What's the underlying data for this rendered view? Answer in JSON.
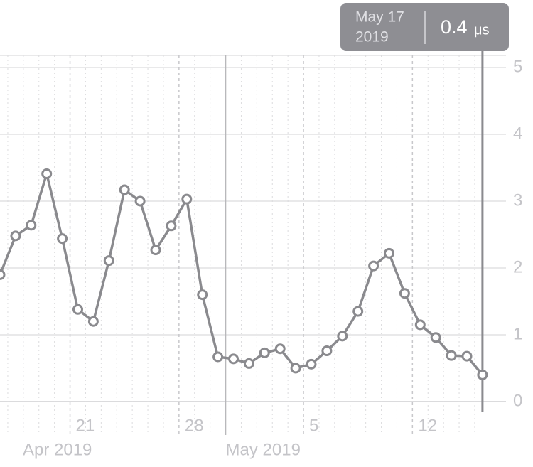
{
  "chart_data": {
    "type": "line",
    "categories": [
      null,
      null,
      null,
      null,
      null,
      "21",
      null,
      null,
      null,
      null,
      null,
      null,
      "28",
      null,
      null,
      null,
      null,
      null,
      null,
      null,
      "5",
      null,
      null,
      null,
      null,
      null,
      null,
      "12",
      null,
      null,
      null,
      null
    ],
    "months": [
      "Apr 2019",
      "May 2019"
    ],
    "values": [
      1.9,
      2.48,
      2.64,
      3.41,
      2.44,
      1.38,
      1.2,
      2.11,
      3.17,
      3.0,
      2.27,
      2.63,
      3.03,
      1.6,
      0.67,
      0.64,
      0.57,
      0.73,
      0.79,
      0.5,
      0.56,
      0.76,
      0.98,
      1.35,
      2.03,
      2.22,
      1.62,
      1.15,
      0.96,
      0.69,
      0.68,
      0.4
    ],
    "color": "#8a8a8e",
    "ylim": [
      0,
      5
    ],
    "yticks": [
      0,
      1,
      2,
      3,
      4,
      5
    ],
    "grid": true,
    "tooltip": {
      "date": "May 17",
      "year": "2019",
      "unit": "μs"
    }
  }
}
